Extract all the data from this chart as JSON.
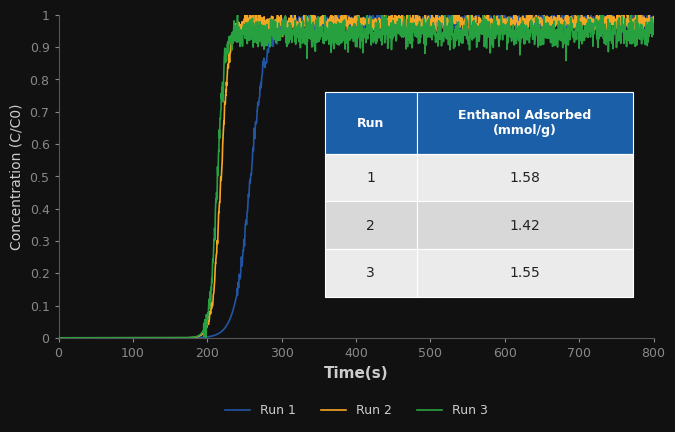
{
  "title": "",
  "xlabel": "Time(s)",
  "ylabel": "Concentration (C/C0)",
  "xlim": [
    0,
    800
  ],
  "ylim": [
    0,
    1.0
  ],
  "yticks": [
    0,
    0.1,
    0.2,
    0.3,
    0.4,
    0.5,
    0.6,
    0.7,
    0.8,
    0.9,
    1
  ],
  "xticks": [
    0,
    100,
    200,
    300,
    400,
    500,
    600,
    700,
    800
  ],
  "run1_color": "#2255a4",
  "run2_color": "#f5a623",
  "run3_color": "#27a040",
  "run1_label": "Run 1",
  "run2_label": "Run 2",
  "run3_label": "Run 3",
  "run1_breakthrough": 258,
  "run2_breakthrough": 218,
  "run3_breakthrough": 213,
  "run1_steepness": 0.1,
  "run2_steepness": 0.18,
  "run3_steepness": 0.2,
  "run1_plateau": 0.978,
  "run2_plateau": 0.978,
  "run3_plateau": 0.945,
  "noise_amplitude": 0.022,
  "noise_freq": 8,
  "table_header_bg": "#1a5fa8",
  "table_header_color": "#ffffff",
  "table_row_bg1": "#ebebeb",
  "table_row_bg2": "#d8d8d8",
  "table_runs": [
    "1",
    "2",
    "3"
  ],
  "table_values": [
    "1.58",
    "1.42",
    "1.55"
  ],
  "table_col1_header": "Run",
  "table_col2_header": "Enthanol Adsorbed\n(mmol/g)",
  "background_color": "#111111",
  "plot_bg": "#111111",
  "legend_fontsize": 9,
  "axis_label_fontsize": 11,
  "tick_fontsize": 9,
  "tick_color": "#888888",
  "spine_color": "#555555",
  "label_color": "#cccccc"
}
